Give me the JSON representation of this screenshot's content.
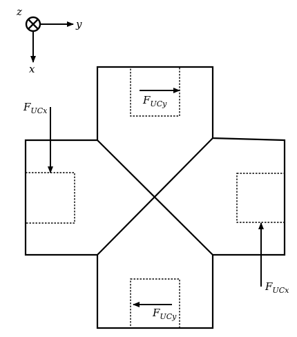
{
  "axes": {
    "z_label": "z",
    "y_label": "y",
    "x_label": "x",
    "z_symbol": "into-page-circle-cross-icon"
  },
  "forces": {
    "top": {
      "base": "F",
      "sub": "UCy",
      "direction": "right"
    },
    "left": {
      "base": "F",
      "sub": "UCx",
      "direction": "down"
    },
    "right": {
      "base": "F",
      "sub": "UCx",
      "direction": "up"
    },
    "bottom": {
      "base": "F",
      "sub": "UCy",
      "direction": "left"
    }
  },
  "colors": {
    "stroke": "#000000",
    "background": "#ffffff"
  }
}
